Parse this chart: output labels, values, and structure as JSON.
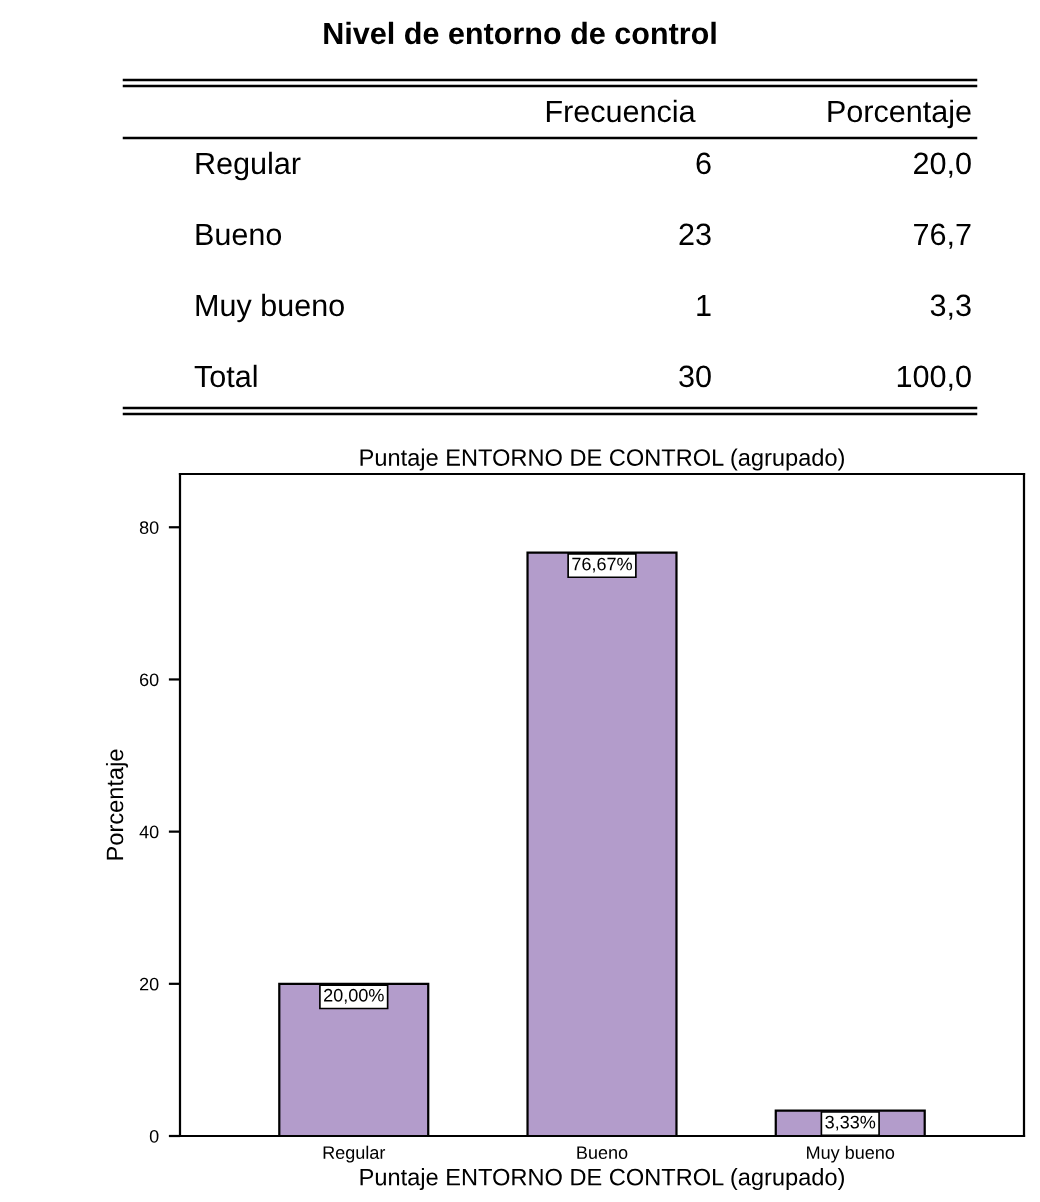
{
  "chart_data": [
    {
      "type": "other",
      "title": "Nivel de entorno de control",
      "annotations": [
        "Frecuencia",
        "Porcentaje",
        "Regular",
        "6",
        "20,0",
        "Bueno",
        "23",
        "76,7",
        "Muy bueno",
        "1",
        "3,3",
        "Total",
        "30",
        "100,0"
      ]
    },
    {
      "type": "bar",
      "title": "Puntaje ENTORNO DE CONTROL (agrupado)",
      "xlabel": "Puntaje ENTORNO DE CONTROL (agrupado)",
      "ylabel": "Porcentaje",
      "categories": [
        "Regular",
        "Bueno",
        "Muy bueno"
      ],
      "values": [
        20.0,
        76.67,
        3.33
      ],
      "value_labels": [
        "20,00%",
        "76,67%",
        "3,33%"
      ],
      "color": "#b39ccb",
      "ylim": [
        0,
        87
      ],
      "yticks": [
        0,
        20,
        40,
        60,
        80
      ],
      "grid": false
    }
  ]
}
